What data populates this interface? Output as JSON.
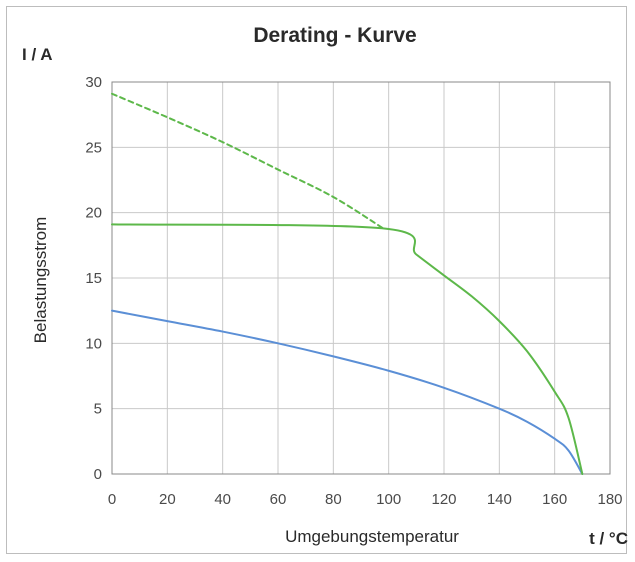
{
  "chart_data": {
    "type": "line",
    "title": "Derating - Kurve",
    "xlabel": "Umgebungstemperatur",
    "xunit": "t / °C",
    "ylabel": "Belastungsstrom",
    "yunit": "I / A",
    "xlim": [
      0,
      180
    ],
    "ylim": [
      0,
      30
    ],
    "xticks": [
      0,
      20,
      40,
      60,
      80,
      100,
      120,
      140,
      160,
      180
    ],
    "yticks": [
      0,
      5,
      10,
      15,
      20,
      25,
      30
    ],
    "grid": true,
    "series": [
      {
        "color": "#5b8fd6",
        "style": "solid",
        "x": [
          0,
          20,
          40,
          60,
          80,
          100,
          120,
          140,
          150,
          160,
          165,
          170
        ],
        "y": [
          12.5,
          11.7,
          10.9,
          10.0,
          9.0,
          7.9,
          6.6,
          5.0,
          4.0,
          2.7,
          1.8,
          0
        ]
      },
      {
        "color": "#5db84a",
        "style": "solid",
        "x": [
          0,
          98,
          110,
          120,
          130,
          140,
          150,
          160,
          165,
          170
        ],
        "y": [
          19.1,
          18.8,
          16.8,
          15.2,
          13.6,
          11.7,
          9.4,
          6.3,
          4.3,
          0
        ]
      },
      {
        "color": "#5db84a",
        "style": "dashed",
        "x": [
          0,
          20,
          40,
          60,
          80,
          98
        ],
        "y": [
          29.1,
          27.3,
          25.4,
          23.3,
          21.2,
          18.8
        ]
      }
    ]
  }
}
